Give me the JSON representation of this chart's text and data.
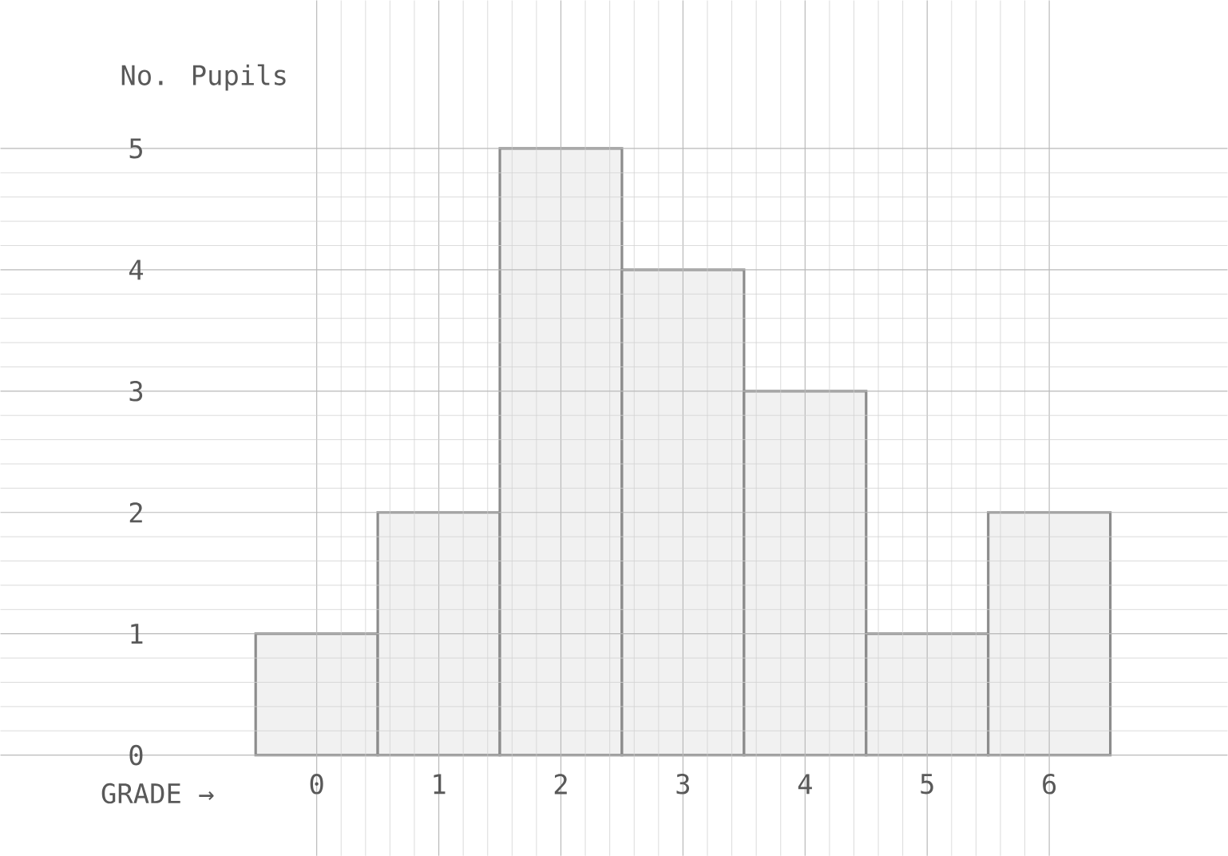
{
  "chart_data": {
    "type": "bar",
    "ylabel": "No. Pupils",
    "xlabel": "GRADE →",
    "categories": [
      "0",
      "1",
      "2",
      "3",
      "4",
      "5",
      "6"
    ],
    "values": [
      1,
      2,
      5,
      4,
      3,
      1,
      2
    ],
    "color": "#8c8c8c",
    "ylim": [
      0,
      5
    ],
    "yticks": [
      0,
      1,
      2,
      3,
      4,
      5
    ],
    "grid": true
  }
}
